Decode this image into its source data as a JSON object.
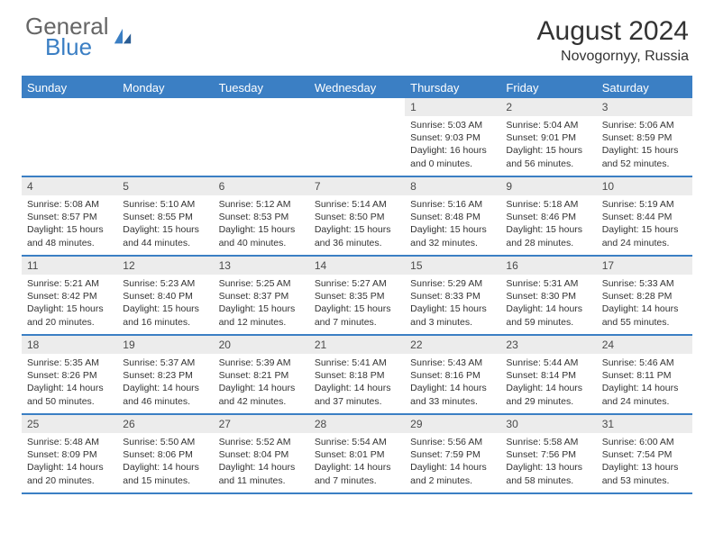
{
  "brand": {
    "top": "General",
    "bottom": "Blue"
  },
  "title": "August 2024",
  "location": "Novogornyy, Russia",
  "colors": {
    "accent": "#3b7fc4",
    "dayrow_bg": "#ececec",
    "text": "#333333",
    "bg": "#ffffff"
  },
  "dayNames": [
    "Sunday",
    "Monday",
    "Tuesday",
    "Wednesday",
    "Thursday",
    "Friday",
    "Saturday"
  ],
  "weeks": [
    [
      null,
      null,
      null,
      null,
      {
        "n": "1",
        "sr": "5:03 AM",
        "ss": "9:03 PM",
        "dl": "16 hours and 0 minutes."
      },
      {
        "n": "2",
        "sr": "5:04 AM",
        "ss": "9:01 PM",
        "dl": "15 hours and 56 minutes."
      },
      {
        "n": "3",
        "sr": "5:06 AM",
        "ss": "8:59 PM",
        "dl": "15 hours and 52 minutes."
      }
    ],
    [
      {
        "n": "4",
        "sr": "5:08 AM",
        "ss": "8:57 PM",
        "dl": "15 hours and 48 minutes."
      },
      {
        "n": "5",
        "sr": "5:10 AM",
        "ss": "8:55 PM",
        "dl": "15 hours and 44 minutes."
      },
      {
        "n": "6",
        "sr": "5:12 AM",
        "ss": "8:53 PM",
        "dl": "15 hours and 40 minutes."
      },
      {
        "n": "7",
        "sr": "5:14 AM",
        "ss": "8:50 PM",
        "dl": "15 hours and 36 minutes."
      },
      {
        "n": "8",
        "sr": "5:16 AM",
        "ss": "8:48 PM",
        "dl": "15 hours and 32 minutes."
      },
      {
        "n": "9",
        "sr": "5:18 AM",
        "ss": "8:46 PM",
        "dl": "15 hours and 28 minutes."
      },
      {
        "n": "10",
        "sr": "5:19 AM",
        "ss": "8:44 PM",
        "dl": "15 hours and 24 minutes."
      }
    ],
    [
      {
        "n": "11",
        "sr": "5:21 AM",
        "ss": "8:42 PM",
        "dl": "15 hours and 20 minutes."
      },
      {
        "n": "12",
        "sr": "5:23 AM",
        "ss": "8:40 PM",
        "dl": "15 hours and 16 minutes."
      },
      {
        "n": "13",
        "sr": "5:25 AM",
        "ss": "8:37 PM",
        "dl": "15 hours and 12 minutes."
      },
      {
        "n": "14",
        "sr": "5:27 AM",
        "ss": "8:35 PM",
        "dl": "15 hours and 7 minutes."
      },
      {
        "n": "15",
        "sr": "5:29 AM",
        "ss": "8:33 PM",
        "dl": "15 hours and 3 minutes."
      },
      {
        "n": "16",
        "sr": "5:31 AM",
        "ss": "8:30 PM",
        "dl": "14 hours and 59 minutes."
      },
      {
        "n": "17",
        "sr": "5:33 AM",
        "ss": "8:28 PM",
        "dl": "14 hours and 55 minutes."
      }
    ],
    [
      {
        "n": "18",
        "sr": "5:35 AM",
        "ss": "8:26 PM",
        "dl": "14 hours and 50 minutes."
      },
      {
        "n": "19",
        "sr": "5:37 AM",
        "ss": "8:23 PM",
        "dl": "14 hours and 46 minutes."
      },
      {
        "n": "20",
        "sr": "5:39 AM",
        "ss": "8:21 PM",
        "dl": "14 hours and 42 minutes."
      },
      {
        "n": "21",
        "sr": "5:41 AM",
        "ss": "8:18 PM",
        "dl": "14 hours and 37 minutes."
      },
      {
        "n": "22",
        "sr": "5:43 AM",
        "ss": "8:16 PM",
        "dl": "14 hours and 33 minutes."
      },
      {
        "n": "23",
        "sr": "5:44 AM",
        "ss": "8:14 PM",
        "dl": "14 hours and 29 minutes."
      },
      {
        "n": "24",
        "sr": "5:46 AM",
        "ss": "8:11 PM",
        "dl": "14 hours and 24 minutes."
      }
    ],
    [
      {
        "n": "25",
        "sr": "5:48 AM",
        "ss": "8:09 PM",
        "dl": "14 hours and 20 minutes."
      },
      {
        "n": "26",
        "sr": "5:50 AM",
        "ss": "8:06 PM",
        "dl": "14 hours and 15 minutes."
      },
      {
        "n": "27",
        "sr": "5:52 AM",
        "ss": "8:04 PM",
        "dl": "14 hours and 11 minutes."
      },
      {
        "n": "28",
        "sr": "5:54 AM",
        "ss": "8:01 PM",
        "dl": "14 hours and 7 minutes."
      },
      {
        "n": "29",
        "sr": "5:56 AM",
        "ss": "7:59 PM",
        "dl": "14 hours and 2 minutes."
      },
      {
        "n": "30",
        "sr": "5:58 AM",
        "ss": "7:56 PM",
        "dl": "13 hours and 58 minutes."
      },
      {
        "n": "31",
        "sr": "6:00 AM",
        "ss": "7:54 PM",
        "dl": "13 hours and 53 minutes."
      }
    ]
  ],
  "labels": {
    "sunrise": "Sunrise:",
    "sunset": "Sunset:",
    "daylight": "Daylight:"
  }
}
